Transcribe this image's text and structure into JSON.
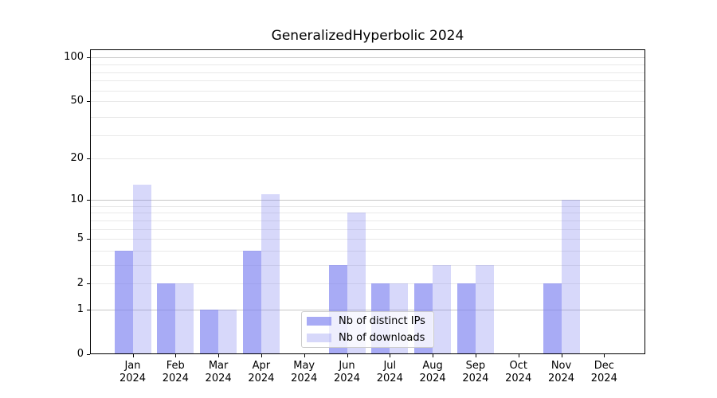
{
  "figure": {
    "background": "#ffffff"
  },
  "chart_data": {
    "type": "bar",
    "title": "GeneralizedHyperbolic 2024",
    "categories": [
      "Jan",
      "Feb",
      "Mar",
      "Apr",
      "May",
      "Jun",
      "Jul",
      "Aug",
      "Sep",
      "Oct",
      "Nov",
      "Dec"
    ],
    "category_year_line": "2024",
    "series": [
      {
        "name": "Nb of distinct IPs",
        "color": "#7b7ff0",
        "alpha": 0.66,
        "rendered_color": "#a8abf5",
        "values": [
          4,
          2,
          1,
          4,
          0,
          3,
          2,
          2,
          2,
          0,
          2,
          0
        ]
      },
      {
        "name": "Nb of downloads",
        "color": "#7b7ff0",
        "alpha": 0.3,
        "rendered_color": "#d8d9fb",
        "values": [
          13,
          2,
          1,
          11,
          0,
          8,
          2,
          3,
          3,
          0,
          10,
          0
        ]
      }
    ],
    "yscale": "log1p",
    "ylim": [
      0,
      112
    ],
    "yticks": [
      0,
      1,
      2,
      5,
      10,
      20,
      50,
      100
    ],
    "grid": "on",
    "legend_position": "lower-center"
  },
  "colors": {
    "grid_major": "#c6c6c6",
    "grid_minor": "#e9e9e9",
    "axis": "#000000",
    "text": "#000000",
    "legend_border": "#cccccc"
  }
}
